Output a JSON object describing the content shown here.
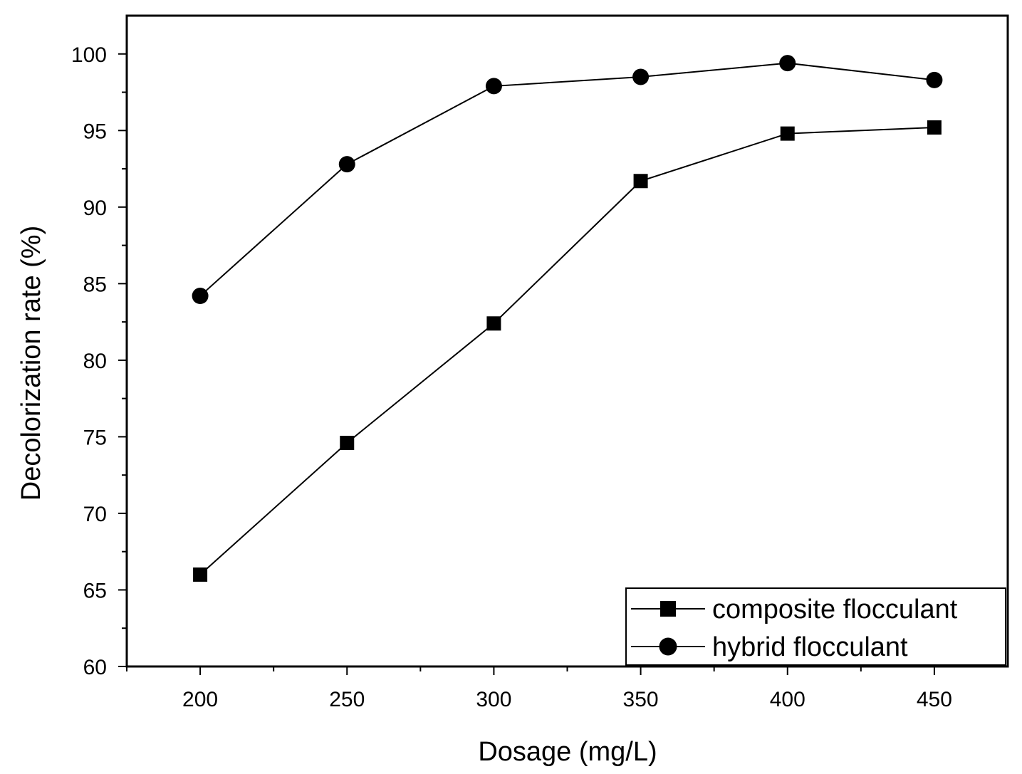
{
  "chart_data": {
    "type": "line",
    "xlabel": "Dosage (mg/L)",
    "ylabel": "Decolorization rate (%)",
    "xlim": [
      175,
      475
    ],
    "ylim": [
      60,
      102.5
    ],
    "x_ticks": [
      200,
      250,
      300,
      350,
      400,
      450
    ],
    "y_ticks": [
      60,
      65,
      70,
      75,
      80,
      85,
      90,
      95,
      100
    ],
    "x": [
      200,
      250,
      300,
      350,
      400,
      450
    ],
    "series": [
      {
        "name": "composite flocculant",
        "marker": "square",
        "values": [
          66.0,
          74.6,
          82.4,
          91.7,
          94.8,
          95.2
        ]
      },
      {
        "name": "hybrid flocculant",
        "marker": "circle",
        "values": [
          84.2,
          92.8,
          97.9,
          98.5,
          99.4,
          98.3
        ]
      }
    ],
    "legend_position": "bottom-right",
    "grid": false,
    "color": "#000000"
  }
}
